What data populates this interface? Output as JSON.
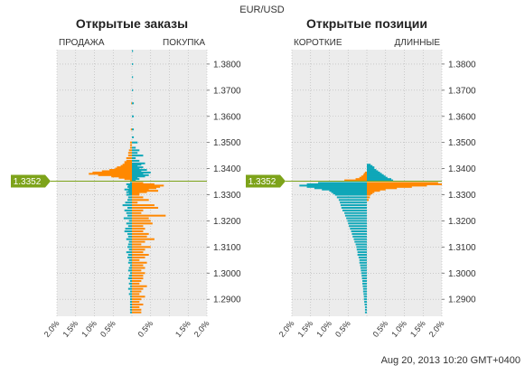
{
  "header": {
    "pair": "EUR/USD",
    "timestamp": "Aug 20, 2013 10:20 GMT+0400"
  },
  "colors": {
    "orange": "#ff8800",
    "teal": "#0fa7b8",
    "green_marker": "#7da31a",
    "plot_bg": "#ececec",
    "grid": "#b4b4b4"
  },
  "current_price": "1.3352",
  "chart_data": [
    {
      "type": "bar",
      "orientation": "horizontal",
      "title": "Открытые заказы",
      "left_label": "ПРОДАЖА",
      "right_label": "ПОКУПКА",
      "xlim": [
        -2.0,
        2.0
      ],
      "ylim": [
        1.2835,
        1.3855
      ],
      "y_ticks": [
        "1.2900",
        "1.3000",
        "1.3100",
        "1.3200",
        "1.3300",
        "1.3400",
        "1.3500",
        "1.3600",
        "1.3700",
        "1.3800"
      ],
      "x_ticks": [
        "2.0%",
        "1.5%",
        "1.0%",
        "0.5%",
        "0.5%",
        "1.5%",
        "2.0%"
      ],
      "current_price_value": 1.3352,
      "series": [
        {
          "side": "sell",
          "color": "orange",
          "y": [
            1.3355,
            1.336,
            1.3365,
            1.337,
            1.3375,
            1.338,
            1.3385,
            1.339,
            1.3395,
            1.34,
            1.3405,
            1.341,
            1.3415,
            1.342,
            1.3425,
            1.343,
            1.344,
            1.345,
            1.346,
            1.347,
            1.348,
            1.349,
            1.35,
            1.355,
            1.365
          ],
          "values": [
            0.05,
            0.2,
            0.35,
            0.55,
            0.9,
            1.15,
            1.05,
            0.8,
            0.6,
            0.45,
            0.4,
            0.3,
            0.25,
            0.2,
            0.2,
            0.15,
            0.15,
            0.1,
            0.1,
            0.08,
            0.05,
            0.05,
            0.05,
            0.03,
            0.02
          ]
        },
        {
          "side": "buy",
          "color": "teal",
          "y": [
            1.3355,
            1.336,
            1.3365,
            1.337,
            1.3375,
            1.338,
            1.3385,
            1.339,
            1.3395,
            1.34,
            1.3405,
            1.341,
            1.3415,
            1.342,
            1.343,
            1.344,
            1.345,
            1.346,
            1.347,
            1.348,
            1.35,
            1.352,
            1.355,
            1.36,
            1.365,
            1.37,
            1.375,
            1.38,
            1.385
          ],
          "values": [
            0.1,
            0.2,
            0.15,
            0.35,
            0.45,
            0.3,
            0.5,
            0.25,
            0.4,
            0.2,
            0.3,
            0.15,
            0.25,
            0.35,
            0.2,
            0.1,
            0.3,
            0.15,
            0.2,
            0.1,
            0.15,
            0.05,
            0.05,
            0.05,
            0.05,
            0.03,
            0.03,
            0.03,
            0.03
          ]
        },
        {
          "side": "sell",
          "color": "teal",
          "y": [
            1.3345,
            1.334,
            1.3335,
            1.333,
            1.3325,
            1.332,
            1.3315,
            1.331,
            1.3305,
            1.33,
            1.329,
            1.328,
            1.327,
            1.326,
            1.325,
            1.324,
            1.323,
            1.322,
            1.321,
            1.32,
            1.319,
            1.318,
            1.317,
            1.316,
            1.315,
            1.314,
            1.313,
            1.312,
            1.311,
            1.31,
            1.309,
            1.308,
            1.307,
            1.306,
            1.305,
            1.304,
            1.303,
            1.302,
            1.301,
            1.3,
            1.299,
            1.298,
            1.297,
            1.296,
            1.295,
            1.294,
            1.293,
            1.292,
            1.291,
            1.29,
            1.289,
            1.288,
            1.287,
            1.286,
            1.285
          ],
          "values": [
            0.05,
            0.15,
            0.1,
            0.12,
            0.08,
            0.2,
            0.1,
            0.15,
            0.08,
            0.15,
            0.1,
            0.12,
            0.18,
            0.25,
            0.12,
            0.2,
            0.15,
            0.12,
            0.22,
            0.08,
            0.15,
            0.1,
            0.18,
            0.2,
            0.12,
            0.1,
            0.15,
            0.08,
            0.1,
            0.12,
            0.08,
            0.15,
            0.1,
            0.12,
            0.08,
            0.1,
            0.05,
            0.08,
            0.1,
            0.05,
            0.08,
            0.1,
            0.05,
            0.08,
            0.05,
            0.1,
            0.05,
            0.08,
            0.05,
            0.05,
            0.05,
            0.05,
            0.05,
            0.05,
            0.05
          ]
        },
        {
          "side": "buy",
          "color": "orange",
          "y": [
            1.3345,
            1.334,
            1.3335,
            1.333,
            1.3325,
            1.332,
            1.3315,
            1.331,
            1.3305,
            1.33,
            1.329,
            1.328,
            1.327,
            1.326,
            1.325,
            1.324,
            1.323,
            1.322,
            1.321,
            1.32,
            1.319,
            1.318,
            1.317,
            1.316,
            1.315,
            1.314,
            1.313,
            1.312,
            1.311,
            1.31,
            1.309,
            1.308,
            1.307,
            1.306,
            1.305,
            1.304,
            1.303,
            1.302,
            1.301,
            1.3,
            1.299,
            1.298,
            1.297,
            1.296,
            1.295,
            1.294,
            1.293,
            1.292,
            1.291,
            1.29,
            1.289,
            1.288,
            1.287,
            1.286,
            1.285
          ],
          "values": [
            0.3,
            0.6,
            0.85,
            0.75,
            0.65,
            0.45,
            0.7,
            0.4,
            0.2,
            0.2,
            0.3,
            0.45,
            0.15,
            0.6,
            0.7,
            0.3,
            0.25,
            0.9,
            0.45,
            0.5,
            0.55,
            0.3,
            0.35,
            0.3,
            0.45,
            0.4,
            0.6,
            0.35,
            0.25,
            0.5,
            0.35,
            0.3,
            0.45,
            0.35,
            0.2,
            0.4,
            0.3,
            0.35,
            0.25,
            0.35,
            0.3,
            0.3,
            0.25,
            0.2,
            0.4,
            0.3,
            0.25,
            0.2,
            0.35,
            0.25,
            0.2,
            0.3,
            0.2,
            0.25,
            0.25
          ]
        }
      ]
    },
    {
      "type": "bar",
      "orientation": "horizontal",
      "title": "Открытые позиции",
      "left_label": "КОРОТКИЕ",
      "right_label": "ДЛИННЫЕ",
      "xlim": [
        -2.0,
        2.0
      ],
      "ylim": [
        1.2835,
        1.3855
      ],
      "y_ticks": [
        "1.2900",
        "1.3000",
        "1.3100",
        "1.3200",
        "1.3300",
        "1.3400",
        "1.3500",
        "1.3600",
        "1.3700",
        "1.3800"
      ],
      "x_ticks": [
        "2.0%",
        "1.5%",
        "1.0%",
        "0.5%",
        "0.5%",
        "1.0%",
        "1.5%",
        "2.0%"
      ],
      "current_price_value": 1.3352,
      "series": [
        {
          "side": "short",
          "color": "orange",
          "y": [
            1.3355,
            1.336,
            1.3365,
            1.337,
            1.3375,
            1.338,
            1.3385
          ],
          "values": [
            0.6,
            0.3,
            0.2,
            0.15,
            0.1,
            0.08,
            0.05
          ]
        },
        {
          "side": "long",
          "color": "teal",
          "y": [
            1.3355,
            1.336,
            1.3365,
            1.337,
            1.3375,
            1.338,
            1.3385,
            1.339,
            1.3395,
            1.34,
            1.3405,
            1.341,
            1.3415
          ],
          "values": [
            0.7,
            0.65,
            0.55,
            0.5,
            0.45,
            0.4,
            0.35,
            0.3,
            0.25,
            0.2,
            0.2,
            0.15,
            0.1
          ]
        },
        {
          "side": "short",
          "color": "teal",
          "y": [
            1.3345,
            1.334,
            1.3335,
            1.333,
            1.3325,
            1.332,
            1.3315,
            1.331,
            1.3305,
            1.33,
            1.329,
            1.328,
            1.327,
            1.326,
            1.325,
            1.324,
            1.323,
            1.322,
            1.321,
            1.32,
            1.319,
            1.318,
            1.317,
            1.316,
            1.315,
            1.314,
            1.313,
            1.312,
            1.311,
            1.31,
            1.309,
            1.308,
            1.307,
            1.306,
            1.305,
            1.304,
            1.303,
            1.302,
            1.301,
            1.3,
            1.299,
            1.298,
            1.297,
            1.296,
            1.295,
            1.294,
            1.293,
            1.292,
            1.291,
            1.29,
            1.289,
            1.288,
            1.287,
            1.286,
            1.285
          ],
          "values": [
            1.3,
            1.6,
            1.8,
            1.6,
            1.4,
            1.2,
            1.0,
            0.95,
            0.9,
            0.85,
            0.8,
            0.75,
            0.72,
            0.7,
            0.68,
            0.65,
            0.6,
            0.58,
            0.55,
            0.52,
            0.5,
            0.48,
            0.45,
            0.42,
            0.4,
            0.38,
            0.35,
            0.33,
            0.3,
            0.28,
            0.27,
            0.25,
            0.25,
            0.22,
            0.2,
            0.2,
            0.18,
            0.17,
            0.16,
            0.15,
            0.14,
            0.13,
            0.12,
            0.12,
            0.11,
            0.1,
            0.1,
            0.09,
            0.08,
            0.08,
            0.07,
            0.06,
            0.05,
            0.05,
            0.05
          ]
        },
        {
          "side": "long",
          "color": "orange",
          "y": [
            1.3345,
            1.334,
            1.3335,
            1.333,
            1.3325,
            1.332,
            1.3315,
            1.331,
            1.3305,
            1.33,
            1.329,
            1.328
          ],
          "values": [
            1.9,
            2.0,
            1.6,
            1.2,
            0.8,
            0.5,
            0.35,
            0.2,
            0.15,
            0.1,
            0.08,
            0.05
          ]
        }
      ]
    }
  ]
}
